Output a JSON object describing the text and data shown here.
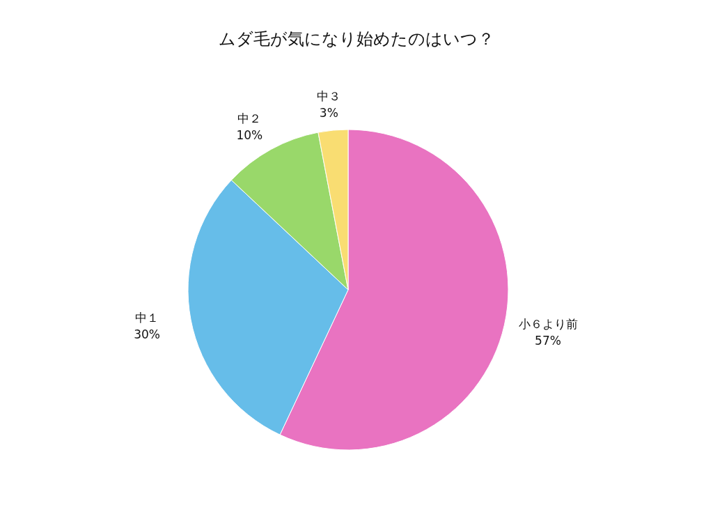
{
  "chart_data": {
    "type": "pie",
    "title": "ムダ毛が気になり始めたのはいつ？",
    "categories": [
      "小６より前",
      "中１",
      "中２",
      "中３"
    ],
    "values": [
      57,
      30,
      10,
      3
    ],
    "value_labels": [
      "57%",
      "30%",
      "10%",
      "3%"
    ],
    "colors": [
      "#e973c1",
      "#66bde9",
      "#99d86a",
      "#f9dd72"
    ]
  }
}
